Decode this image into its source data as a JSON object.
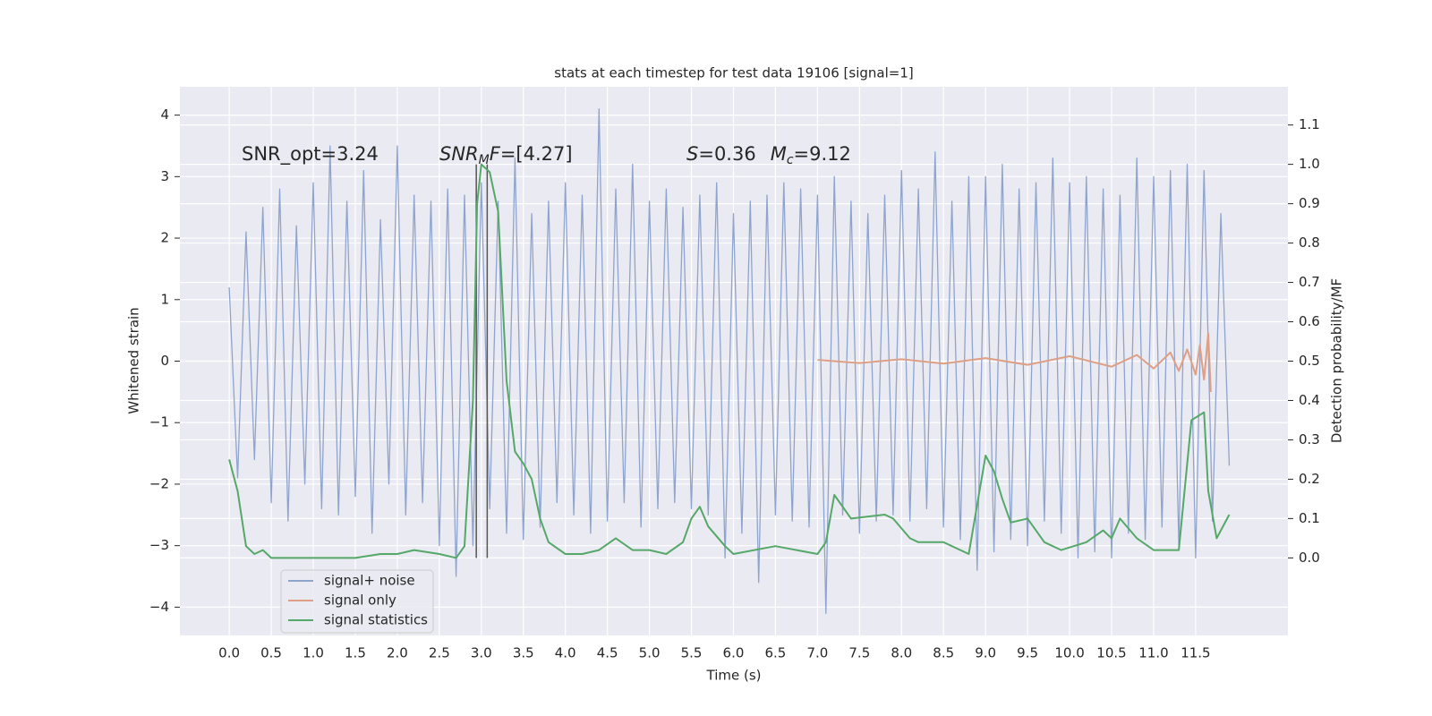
{
  "chart_data": {
    "type": "line",
    "title": "stats at each timestep for test data 19106 [signal=1]",
    "xlabel": "Time (s)",
    "ylabel": "Whitened strain",
    "y2label": "Detection probability/MF",
    "xlim": [
      -0.587,
      12.598
    ],
    "ylim": [
      -4.46,
      4.46
    ],
    "y2lim": [
      -0.197,
      1.197
    ],
    "xticks": [
      {
        "value": 0,
        "label": "0.0"
      },
      0.5,
      {
        "value": 1,
        "label": "1.0"
      },
      1.5,
      {
        "value": 2,
        "label": "2.0"
      },
      2.5,
      {
        "value": 3,
        "label": "3.0"
      },
      3.5,
      {
        "value": 4,
        "label": "4.0"
      },
      4.5,
      {
        "value": 5,
        "label": "5.0"
      },
      5.5,
      {
        "value": 6,
        "label": "6.0"
      },
      6.5,
      {
        "value": 7,
        "label": "7.0"
      },
      7.5,
      {
        "value": 8,
        "label": "8.0"
      },
      8.5,
      {
        "value": 9,
        "label": "9.0"
      },
      9.5,
      {
        "value": 10,
        "label": "10.0"
      },
      10.5,
      {
        "value": 11,
        "label": "11.0"
      },
      11.5
    ],
    "yticks": [
      {
        "value": -4,
        "label": "−4"
      },
      {
        "value": -3,
        "label": "−3"
      },
      {
        "value": -2,
        "label": "−2"
      },
      {
        "value": -1,
        "label": "−1"
      },
      0,
      1,
      2,
      3,
      4
    ],
    "y2ticks": [
      {
        "value": 0,
        "label": "0.0"
      },
      0.1,
      0.2,
      0.3,
      0.4,
      0.5,
      0.6,
      0.7,
      0.8,
      0.9,
      {
        "value": 1,
        "label": "1.0"
      },
      1.1
    ],
    "grid": true,
    "legend": "lower left",
    "series": [
      {
        "name": "signal+ noise",
        "color": "#8fa4cd",
        "x": [
          0,
          0.1,
          0.2,
          0.3,
          0.4,
          0.5,
          0.6,
          0.7,
          0.8,
          0.9,
          1,
          1.1,
          1.2,
          1.3,
          1.4,
          1.5,
          1.6,
          1.7,
          1.8,
          1.9,
          2,
          2.1,
          2.2,
          2.3,
          2.4,
          2.5,
          2.6,
          2.7,
          2.8,
          2.9,
          3,
          3.1,
          3.2,
          3.3,
          3.4,
          3.5,
          3.6,
          3.7,
          3.8,
          3.9,
          4,
          4.1,
          4.2,
          4.3,
          4.4,
          4.5,
          4.6,
          4.7,
          4.8,
          4.9,
          5,
          5.1,
          5.2,
          5.3,
          5.4,
          5.5,
          5.6,
          5.7,
          5.8,
          5.9,
          6,
          6.1,
          6.2,
          6.3,
          6.4,
          6.5,
          6.6,
          6.7,
          6.8,
          6.9,
          7,
          7.1,
          7.2,
          7.3,
          7.4,
          7.5,
          7.6,
          7.7,
          7.8,
          7.9,
          8,
          8.1,
          8.2,
          8.3,
          8.4,
          8.5,
          8.6,
          8.7,
          8.8,
          8.9,
          9,
          9.1,
          9.2,
          9.3,
          9.4,
          9.5,
          9.6,
          9.7,
          9.8,
          9.9,
          10,
          10.1,
          10.2,
          10.3,
          10.4,
          10.5,
          10.6,
          10.7,
          10.8,
          10.9,
          11,
          11.1,
          11.2,
          11.3,
          11.4,
          11.5,
          11.6,
          11.7,
          11.8,
          11.9
        ],
        "values": [
          1.2,
          -1.9,
          2.1,
          -1.6,
          2.5,
          -2.3,
          2.8,
          -2.6,
          2.2,
          -2.0,
          2.9,
          -2.4,
          3.5,
          -2.5,
          2.6,
          -2.2,
          3.1,
          -2.8,
          2.3,
          -2.0,
          3.5,
          -2.5,
          2.7,
          -2.3,
          2.6,
          -3.0,
          2.8,
          -3.5,
          2.7,
          -3.0,
          2.9,
          -2.4,
          2.6,
          -2.8,
          3.3,
          -2.9,
          2.4,
          -2.7,
          2.6,
          -2.3,
          2.9,
          -2.5,
          2.7,
          -2.8,
          4.1,
          -2.6,
          2.8,
          -2.3,
          3.2,
          -2.7,
          2.6,
          -2.4,
          2.8,
          -2.3,
          2.5,
          -2.4,
          2.7,
          -2.5,
          2.9,
          -3.2,
          2.4,
          -2.8,
          2.6,
          -3.6,
          2.7,
          -2.5,
          2.9,
          -2.6,
          2.8,
          -2.7,
          2.7,
          -4.1,
          3.0,
          -2.5,
          2.6,
          -2.8,
          2.4,
          -2.6,
          2.7,
          -2.5,
          3.1,
          -2.6,
          2.8,
          -2.4,
          3.4,
          -2.7,
          2.6,
          -2.9,
          3.0,
          -3.4,
          3.0,
          -3.1,
          3.2,
          -2.9,
          2.8,
          -3.0,
          2.9,
          -2.6,
          3.3,
          -2.8,
          2.9,
          -3.2,
          3.0,
          -3.1,
          2.8,
          -3.2,
          2.7,
          -2.8,
          3.3,
          -2.9,
          3.0,
          -2.7,
          3.1,
          -3.0,
          3.2,
          -3.2,
          3.1,
          -2.6,
          2.4,
          -1.7
        ]
      },
      {
        "name": "signal only",
        "color": "#dd9f85",
        "x": [
          7.0,
          7.5,
          8.0,
          8.5,
          9.0,
          9.5,
          10.0,
          10.5,
          10.8,
          11.0,
          11.2,
          11.3,
          11.4,
          11.5,
          11.55,
          11.6,
          11.65,
          11.68
        ],
        "values": [
          0.02,
          -0.03,
          0.03,
          -0.04,
          0.05,
          -0.06,
          0.08,
          -0.09,
          0.1,
          -0.12,
          0.14,
          -0.16,
          0.19,
          -0.22,
          0.26,
          -0.3,
          0.45,
          -0.5
        ]
      },
      {
        "name": "signal statistics",
        "color": "#55a868",
        "axis": "y2",
        "x": [
          0.0,
          0.1,
          0.2,
          0.3,
          0.4,
          0.5,
          0.7,
          1.0,
          1.5,
          1.8,
          2.0,
          2.2,
          2.5,
          2.7,
          2.8,
          2.9,
          2.95,
          3.0,
          3.1,
          3.2,
          3.3,
          3.4,
          3.5,
          3.6,
          3.7,
          3.8,
          4.0,
          4.2,
          4.4,
          4.6,
          4.8,
          5.0,
          5.2,
          5.4,
          5.5,
          5.6,
          5.7,
          5.9,
          6.0,
          6.5,
          7.0,
          7.1,
          7.2,
          7.4,
          7.8,
          7.9,
          8.1,
          8.2,
          8.5,
          8.8,
          9.0,
          9.1,
          9.2,
          9.3,
          9.5,
          9.7,
          9.9,
          10.2,
          10.4,
          10.5,
          10.6,
          10.8,
          11.0,
          11.3,
          11.45,
          11.6,
          11.65,
          11.75,
          11.9
        ],
        "values": [
          0.25,
          0.17,
          0.03,
          0.01,
          0.02,
          0.0,
          0.0,
          0.0,
          0.0,
          0.01,
          0.01,
          0.02,
          0.01,
          0.0,
          0.03,
          0.4,
          0.9,
          1.0,
          0.98,
          0.88,
          0.45,
          0.27,
          0.24,
          0.2,
          0.1,
          0.04,
          0.01,
          0.01,
          0.02,
          0.05,
          0.02,
          0.02,
          0.01,
          0.04,
          0.1,
          0.13,
          0.08,
          0.03,
          0.01,
          0.03,
          0.01,
          0.04,
          0.16,
          0.1,
          0.11,
          0.1,
          0.05,
          0.04,
          0.04,
          0.01,
          0.26,
          0.22,
          0.15,
          0.09,
          0.1,
          0.04,
          0.02,
          0.04,
          0.07,
          0.05,
          0.1,
          0.05,
          0.02,
          0.02,
          0.35,
          0.37,
          0.17,
          0.05,
          0.11
        ]
      }
    ],
    "vlines": [
      2.94,
      3.07
    ],
    "vline_color": "#555555",
    "annotations": [
      {
        "parts": [
          {
            "text": "SNR_opt=3.24",
            "style": "normal"
          }
        ]
      },
      {
        "parts": [
          {
            "text": "SNR",
            "style": "italic"
          },
          {
            "text": "M",
            "style": "sub"
          },
          {
            "text": "F",
            "style": "italic"
          },
          {
            "text": "=[4.27]",
            "style": "normal"
          }
        ]
      },
      {
        "parts": [
          {
            "text": "S",
            "style": "italic"
          },
          {
            "text": "=0.36",
            "style": "normal"
          },
          {
            "text": "M",
            "style": "italic"
          },
          {
            "text": "c",
            "style": "sub"
          },
          {
            "text": "=9.12",
            "style": "normal"
          }
        ]
      }
    ]
  }
}
